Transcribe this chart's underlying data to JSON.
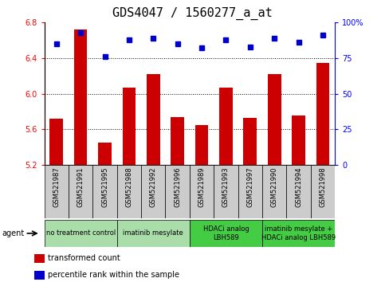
{
  "title": "GDS4047 / 1560277_a_at",
  "samples": [
    "GSM521987",
    "GSM521991",
    "GSM521995",
    "GSM521988",
    "GSM521992",
    "GSM521996",
    "GSM521989",
    "GSM521993",
    "GSM521997",
    "GSM521990",
    "GSM521994",
    "GSM521998"
  ],
  "bar_values": [
    5.72,
    6.72,
    5.45,
    6.07,
    6.22,
    5.74,
    5.65,
    6.07,
    5.73,
    6.22,
    5.76,
    6.35
  ],
  "percentile_values": [
    85,
    93,
    76,
    88,
    89,
    85,
    82,
    88,
    83,
    89,
    86,
    91
  ],
  "bar_color": "#cc0000",
  "dot_color": "#0000cc",
  "ylim_left": [
    5.2,
    6.8
  ],
  "ylim_right": [
    0,
    100
  ],
  "yticks_left": [
    5.2,
    5.6,
    6.0,
    6.4,
    6.8
  ],
  "yticks_right": [
    0,
    25,
    50,
    75,
    100
  ],
  "ytick_labels_right": [
    "0",
    "25",
    "50",
    "75",
    "100%"
  ],
  "grid_values": [
    5.6,
    6.0,
    6.4
  ],
  "agent_groups": [
    {
      "label": "no treatment control",
      "start": 0,
      "end": 3,
      "color": "#aaddaa"
    },
    {
      "label": "imatinib mesylate",
      "start": 3,
      "end": 6,
      "color": "#aaddaa"
    },
    {
      "label": "HDACi analog\nLBH589",
      "start": 6,
      "end": 9,
      "color": "#44cc44"
    },
    {
      "label": "imatinib mesylate +\nHDACi analog LBH589",
      "start": 9,
      "end": 12,
      "color": "#44cc44"
    }
  ],
  "cell_bg": "#cccccc",
  "title_fontsize": 11,
  "tick_fontsize": 7,
  "sample_fontsize": 6,
  "agent_fontsize": 6,
  "legend_fontsize": 7
}
